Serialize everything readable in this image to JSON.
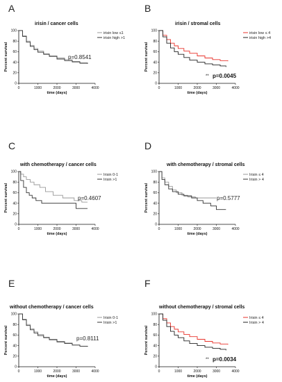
{
  "chart_data": [
    {
      "panel": "A",
      "type": "line",
      "title": "irisin / cancer cells",
      "xlabel": "time (days)",
      "ylabel": "Percent survival",
      "xlim": [
        0,
        4000
      ],
      "ylim": [
        0,
        100
      ],
      "xticks": [
        0,
        1000,
        2000,
        3000,
        4000
      ],
      "yticks": [
        0,
        20,
        40,
        60,
        80,
        100
      ],
      "annotation": "p=0.8541",
      "annotation_bold": false,
      "annotation_stars": "",
      "legend_position": "top-right",
      "series": [
        {
          "name": "irisin low ≤1",
          "color": "#999999",
          "x": [
            0,
            200,
            400,
            600,
            800,
            1000,
            1300,
            1600,
            2000,
            2400,
            2800,
            3200,
            3600
          ],
          "y": [
            100,
            90,
            80,
            72,
            66,
            61,
            56,
            52,
            48,
            45,
            40,
            39,
            38
          ]
        },
        {
          "name": "irisin high >1",
          "color": "#333333",
          "x": [
            0,
            200,
            400,
            600,
            800,
            1000,
            1300,
            1600,
            2000,
            2400,
            2800,
            3200,
            3600
          ],
          "y": [
            100,
            89,
            78,
            70,
            64,
            59,
            55,
            51,
            46,
            43,
            41,
            38,
            37
          ]
        }
      ]
    },
    {
      "panel": "B",
      "type": "line",
      "title": "irisin / stromal cells",
      "xlabel": "time (days)",
      "ylabel": "Percent survival",
      "xlim": [
        0,
        4000
      ],
      "ylim": [
        0,
        100
      ],
      "xticks": [
        0,
        1000,
        2000,
        3000,
        4000
      ],
      "yticks": [
        0,
        20,
        40,
        60,
        80,
        100
      ],
      "annotation": "p=0.0045",
      "annotation_bold": true,
      "annotation_stars": "**",
      "legend_position": "top-right",
      "series": [
        {
          "name": "irisin low ≤ 4",
          "color": "#e8322a",
          "x": [
            0,
            200,
            400,
            600,
            800,
            1000,
            1300,
            1600,
            2000,
            2400,
            2800,
            3200,
            3600
          ],
          "y": [
            100,
            91,
            83,
            76,
            71,
            66,
            61,
            57,
            52,
            48,
            45,
            43,
            42
          ]
        },
        {
          "name": "irisin high >4",
          "color": "#222222",
          "x": [
            0,
            200,
            400,
            600,
            800,
            1000,
            1300,
            1600,
            2000,
            2400,
            2800,
            3200,
            3500
          ],
          "y": [
            100,
            88,
            76,
            67,
            60,
            55,
            49,
            44,
            40,
            37,
            35,
            33,
            31
          ]
        }
      ]
    },
    {
      "panel": "C",
      "type": "line",
      "title": "with chemotherapy / cancer cells",
      "xlabel": "time (days)",
      "ylabel": "Percent survival",
      "xlim": [
        0,
        4000
      ],
      "ylim": [
        0,
        100
      ],
      "xticks": [
        0,
        1000,
        2000,
        3000,
        4000
      ],
      "yticks": [
        0,
        20,
        40,
        60,
        80,
        100
      ],
      "annotation": "p=0.4607",
      "annotation_bold": false,
      "annotation_stars": "",
      "legend_position": "top-right",
      "series": [
        {
          "name": "Irisin 0-1",
          "color": "#999999",
          "x": [
            0,
            100,
            250,
            400,
            600,
            800,
            1100,
            1400,
            1800,
            2300,
            2900,
            3300,
            3600
          ],
          "y": [
            100,
            95,
            90,
            85,
            80,
            75,
            70,
            62,
            55,
            50,
            45,
            42,
            42
          ]
        },
        {
          "name": "Irisin >1",
          "color": "#333333",
          "x": [
            0,
            100,
            250,
            400,
            550,
            700,
            900,
            1200,
            2000,
            3000,
            3600
          ],
          "y": [
            100,
            83,
            70,
            60,
            55,
            50,
            45,
            40,
            40,
            30,
            30
          ]
        }
      ]
    },
    {
      "panel": "D",
      "type": "line",
      "title": "with chemotherapy / stromal cells",
      "xlabel": "time (days)",
      "ylabel": "Percent survival",
      "xlim": [
        0,
        4000
      ],
      "ylim": [
        0,
        100
      ],
      "xticks": [
        0,
        1000,
        2000,
        3000,
        4000
      ],
      "yticks": [
        0,
        20,
        40,
        60,
        80,
        100
      ],
      "annotation": "p=0.5777",
      "annotation_bold": false,
      "annotation_stars": "",
      "legend_position": "top-right",
      "series": [
        {
          "name": "Irisin ≤ 4",
          "color": "#999999",
          "x": [
            0,
            150,
            300,
            500,
            700,
            900,
            1200,
            1500,
            1900,
            3000
          ],
          "y": [
            100,
            88,
            80,
            72,
            65,
            60,
            55,
            52,
            50,
            50
          ]
        },
        {
          "name": "Irisin > 4",
          "color": "#333333",
          "x": [
            0,
            150,
            300,
            500,
            700,
            1000,
            1300,
            1700,
            2000,
            2300,
            2700,
            3000,
            3500
          ],
          "y": [
            100,
            85,
            75,
            67,
            62,
            57,
            54,
            50,
            45,
            40,
            35,
            28,
            28
          ]
        }
      ]
    },
    {
      "panel": "E",
      "type": "line",
      "title": "without   chemotherapy / cancer cells",
      "xlabel": "time (days)",
      "ylabel": "Percent survival",
      "xlim": [
        0,
        4000
      ],
      "ylim": [
        0,
        100
      ],
      "xticks": [
        0,
        1000,
        2000,
        3000,
        4000
      ],
      "yticks": [
        0,
        20,
        40,
        60,
        80,
        100
      ],
      "annotation": "p=0.8111",
      "annotation_bold": false,
      "annotation_stars": "",
      "legend_position": "top-right",
      "series": [
        {
          "name": "Irisin 0-1",
          "color": "#999999",
          "x": [
            0,
            200,
            400,
            600,
            800,
            1000,
            1300,
            1600,
            2000,
            2400,
            2800,
            3200,
            3600
          ],
          "y": [
            100,
            90,
            80,
            72,
            66,
            61,
            56,
            52,
            48,
            45,
            41,
            39,
            38
          ]
        },
        {
          "name": "Irisin >1",
          "color": "#333333",
          "x": [
            0,
            200,
            400,
            600,
            800,
            1000,
            1300,
            1600,
            2000,
            2400,
            2800,
            3200,
            3600
          ],
          "y": [
            100,
            89,
            78,
            70,
            64,
            59,
            55,
            51,
            47,
            44,
            41,
            39,
            38
          ]
        }
      ]
    },
    {
      "panel": "F",
      "type": "line",
      "title": "without chemotherapy / stromal cells",
      "xlabel": "time (days)",
      "ylabel": "Percent survival",
      "xlim": [
        0,
        4000
      ],
      "ylim": [
        0,
        100
      ],
      "xticks": [
        0,
        1000,
        2000,
        3000,
        4000
      ],
      "yticks": [
        0,
        20,
        40,
        60,
        80,
        100
      ],
      "annotation": "p=0.0034",
      "annotation_bold": true,
      "annotation_stars": "**",
      "legend_position": "top-right",
      "series": [
        {
          "name": "Irisin ≤ 4",
          "color": "#e8322a",
          "x": [
            0,
            200,
            400,
            600,
            800,
            1000,
            1300,
            1600,
            2000,
            2400,
            2800,
            3200,
            3600
          ],
          "y": [
            100,
            91,
            83,
            76,
            71,
            66,
            61,
            57,
            52,
            48,
            45,
            43,
            42
          ]
        },
        {
          "name": "Irisin > 4",
          "color": "#222222",
          "x": [
            0,
            200,
            400,
            600,
            800,
            1000,
            1300,
            1600,
            2000,
            2400,
            2800,
            3200,
            3500
          ],
          "y": [
            100,
            88,
            76,
            67,
            60,
            55,
            49,
            44,
            40,
            37,
            35,
            33,
            31
          ]
        }
      ]
    }
  ]
}
